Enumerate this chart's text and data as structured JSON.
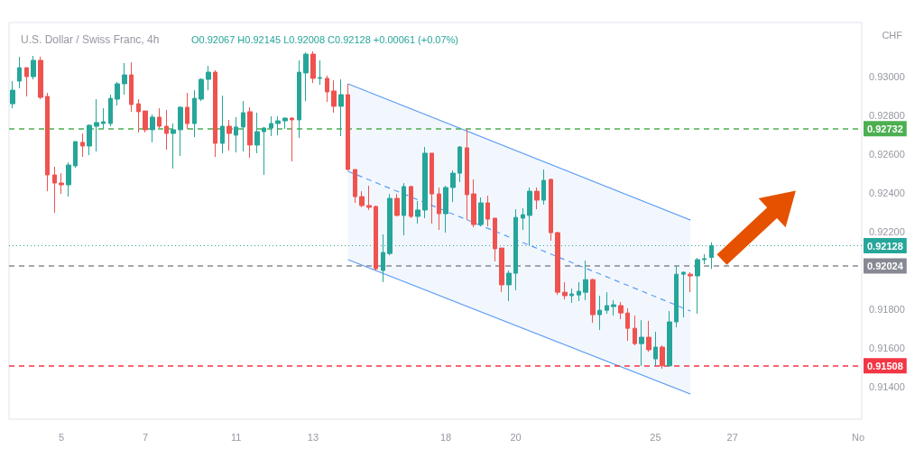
{
  "chart_data": {
    "type": "candlestick",
    "title": "U.S. Dollar / Swiss Franc, 4h",
    "subtitle": "O0.92067 H0.92145 L0.92008 C0.92128 +0.00061 (+0.07%)",
    "annotations": [
      "CHF"
    ],
    "categories": [
      null,
      null,
      null,
      null,
      null,
      null,
      null,
      "5",
      null,
      null,
      null,
      null,
      null,
      null,
      null,
      null,
      null,
      null,
      null,
      "7",
      null,
      null,
      null,
      null,
      null,
      null,
      null,
      null,
      null,
      null,
      null,
      null,
      "11",
      null,
      null,
      null,
      null,
      null,
      null,
      null,
      null,
      null,
      null,
      "13",
      null,
      null,
      null,
      null,
      null,
      null,
      null,
      null,
      null,
      null,
      null,
      null,
      null,
      null,
      null,
      null,
      null,
      null,
      "18",
      null,
      null,
      null,
      null,
      null,
      null,
      null,
      null,
      null,
      "20",
      null,
      null,
      null,
      null,
      null,
      null,
      null,
      null,
      null,
      null,
      null,
      null,
      null,
      null,
      null,
      null,
      null,
      null,
      null,
      "25",
      null,
      null,
      null,
      null,
      null,
      null,
      null,
      null,
      null,
      null,
      "27",
      null,
      null,
      null,
      null,
      null,
      null,
      null,
      null,
      null,
      null,
      null,
      null,
      null,
      null,
      null,
      null,
      null,
      "No"
    ],
    "colors": [
      "#26a69a",
      "#26a69a",
      "#ef5350",
      "#26a69a",
      "#ef5350",
      "#ef5350",
      "#ef5350",
      "#ef5350",
      "#26a69a",
      "#26a69a",
      "#ef5350",
      "#26a69a",
      "#26a69a",
      "#26a69a",
      "#26a69a",
      "#26a69a",
      "#26a69a",
      "#ef5350",
      "#ef5350",
      "#ef5350",
      "#26a69a",
      "#ef5350",
      "#ef5350",
      "#26a69a",
      "#26a69a",
      "#ef5350",
      "#26a69a",
      "#26a69a",
      "#26a69a",
      "#ef5350",
      "#26a69a",
      "#ef5350",
      "#26a69a",
      "#26a69a",
      "#ef5350",
      "#26a69a",
      "#26a69a",
      "#26a69a",
      "#26a69a",
      "#26a69a",
      "#ef5350",
      "#26a69a",
      "#26a69a",
      "#ef5350",
      "#26a69a",
      "#ef5350",
      "#ef5350",
      "#26a69a",
      "#ef5350",
      "#ef5350",
      "#ef5350",
      "#ef5350",
      "#ef5350",
      "#26a69a",
      "#26a69a",
      "#ef5350",
      "#26a69a",
      "#ef5350",
      "#26a69a",
      "#26a69a",
      "#ef5350",
      "#ef5350",
      "#26a69a",
      "#26a69a",
      "#26a69a",
      "#ef5350",
      "#ef5350",
      "#26a69a",
      "#ef5350",
      "#ef5350",
      "#ef5350",
      "#26a69a",
      "#26a69a",
      "#26a69a",
      "#26a69a",
      "#ef5350",
      "#26a69a",
      "#ef5350",
      "#ef5350",
      "#ef5350",
      "#26a69a",
      "#26a69a",
      "#26a69a",
      "#ef5350",
      "#26a69a",
      "#26a69a",
      "#26a69a",
      "#ef5350",
      "#ef5350",
      "#ef5350",
      "#26a69a",
      "#ef5350",
      "#26a69a",
      "#ef5350",
      "#26a69a",
      "#26a69a",
      "#26a69a",
      "#ef5350",
      "#26a69a",
      "#26a69a",
      "#26a69a",
      null,
      null,
      null,
      null,
      null,
      null,
      null,
      null,
      null,
      null,
      null,
      null,
      null,
      null,
      null,
      null,
      null,
      null,
      null,
      null,
      null
    ],
    "ohlc": [
      [
        0.9286,
        0.92977,
        0.92837,
        0.9293
      ],
      [
        0.92977,
        0.93102,
        0.9294,
        0.93046
      ],
      [
        0.93046,
        0.93046,
        0.92898,
        0.93
      ],
      [
        0.93,
        0.93107,
        0.92986,
        0.93084
      ],
      [
        0.93084,
        0.93102,
        0.92884,
        0.92893
      ],
      [
        0.92898,
        0.92916,
        0.92409,
        0.92493
      ],
      [
        0.92493,
        0.92535,
        0.92298,
        0.92451
      ],
      [
        0.92451,
        0.92502,
        0.92395,
        0.92442
      ],
      [
        0.92442,
        0.92558,
        0.92381,
        0.92544
      ],
      [
        0.9254,
        0.92665,
        0.9253,
        0.92665
      ],
      [
        0.92661,
        0.92707,
        0.92586,
        0.92642
      ],
      [
        0.92642,
        0.92754,
        0.92595,
        0.92749
      ],
      [
        0.92744,
        0.92884,
        0.92614,
        0.92763
      ],
      [
        0.92758,
        0.92837,
        0.9273,
        0.92767
      ],
      [
        0.92758,
        0.92907,
        0.92744,
        0.92888
      ],
      [
        0.92884,
        0.92972,
        0.92851,
        0.92963
      ],
      [
        0.92963,
        0.9307,
        0.92907,
        0.93009
      ],
      [
        0.93009,
        0.93074,
        0.92819,
        0.92856
      ],
      [
        0.9286,
        0.92884,
        0.92712,
        0.92819
      ],
      [
        0.92823,
        0.92823,
        0.92712,
        0.92726
      ],
      [
        0.92726,
        0.92805,
        0.92661,
        0.92791
      ],
      [
        0.92791,
        0.92837,
        0.92735,
        0.92744
      ],
      [
        0.92744,
        0.92828,
        0.92623,
        0.92707
      ],
      [
        0.92707,
        0.92758,
        0.92526,
        0.92726
      ],
      [
        0.92726,
        0.92847,
        0.92591,
        0.92842
      ],
      [
        0.92842,
        0.92916,
        0.9273,
        0.92758
      ],
      [
        0.92758,
        0.9293,
        0.92688,
        0.92888
      ],
      [
        0.92884,
        0.92991,
        0.92874,
        0.92986
      ],
      [
        0.92986,
        0.93056,
        0.9293,
        0.93023
      ],
      [
        0.93023,
        0.93033,
        0.92586,
        0.92656
      ],
      [
        0.92656,
        0.92902,
        0.92605,
        0.92744
      ],
      [
        0.92744,
        0.92777,
        0.92619,
        0.92707
      ],
      [
        0.92698,
        0.92791,
        0.92609,
        0.9274
      ],
      [
        0.9274,
        0.92874,
        0.92614,
        0.92814
      ],
      [
        0.92819,
        0.92842,
        0.92581,
        0.92647
      ],
      [
        0.92647,
        0.92814,
        0.92605,
        0.92716
      ],
      [
        0.92716,
        0.9274,
        0.92493,
        0.92735
      ],
      [
        0.92735,
        0.92795,
        0.92693,
        0.92758
      ],
      [
        0.92758,
        0.92795,
        0.92698,
        0.92772
      ],
      [
        0.92772,
        0.92791,
        0.9273,
        0.92786
      ],
      [
        0.92786,
        0.92791,
        0.92563,
        0.92777
      ],
      [
        0.92777,
        0.93084,
        0.92684,
        0.93023
      ],
      [
        0.93019,
        0.93125,
        0.92874,
        0.93116
      ],
      [
        0.93116,
        0.9313,
        0.92967,
        0.92991
      ],
      [
        0.92991,
        0.93084,
        0.92958,
        0.92995
      ],
      [
        0.92991,
        0.93005,
        0.9287,
        0.92921
      ],
      [
        0.92926,
        0.92981,
        0.92814,
        0.92847
      ],
      [
        0.92847,
        0.92986,
        0.92693,
        0.92907
      ],
      [
        0.92907,
        0.92963,
        0.92516,
        0.92521
      ],
      [
        0.92521,
        0.92521,
        0.92349,
        0.92381
      ],
      [
        0.92381,
        0.92409,
        0.92326,
        0.92335
      ],
      [
        0.92335,
        0.92437,
        0.92312,
        0.92326
      ],
      [
        0.9233,
        0.92335,
        0.92,
        0.92009
      ],
      [
        0.92,
        0.92186,
        0.9194,
        0.92093
      ],
      [
        0.92088,
        0.92395,
        0.92079,
        0.92372
      ],
      [
        0.92372,
        0.92395,
        0.92279,
        0.92284
      ],
      [
        0.92284,
        0.92451,
        0.92181,
        0.92433
      ],
      [
        0.92433,
        0.92437,
        0.9227,
        0.92279
      ],
      [
        0.92279,
        0.92358,
        0.92242,
        0.92312
      ],
      [
        0.92312,
        0.92637,
        0.9227,
        0.92605
      ],
      [
        0.92605,
        0.92605,
        0.92242,
        0.92395
      ],
      [
        0.92395,
        0.92428,
        0.92209,
        0.92293
      ],
      [
        0.92293,
        0.92437,
        0.92195,
        0.92428
      ],
      [
        0.92428,
        0.92516,
        0.92353,
        0.92502
      ],
      [
        0.92502,
        0.92642,
        0.92456,
        0.92637
      ],
      [
        0.92633,
        0.9273,
        0.9226,
        0.92391
      ],
      [
        0.92395,
        0.9247,
        0.92223,
        0.92237
      ],
      [
        0.92237,
        0.92377,
        0.92228,
        0.92349
      ],
      [
        0.92349,
        0.92386,
        0.92228,
        0.92265
      ],
      [
        0.9227,
        0.9227,
        0.92047,
        0.92112
      ],
      [
        0.92116,
        0.92116,
        0.91888,
        0.91926
      ],
      [
        0.91926,
        0.92,
        0.91842,
        0.91986
      ],
      [
        0.91986,
        0.92316,
        0.91898,
        0.92274
      ],
      [
        0.9227,
        0.92321,
        0.92209,
        0.92288
      ],
      [
        0.92284,
        0.92428,
        0.9213,
        0.92409
      ],
      [
        0.92409,
        0.92428,
        0.92316,
        0.92363
      ],
      [
        0.92363,
        0.92521,
        0.9234,
        0.92465
      ],
      [
        0.9247,
        0.92474,
        0.92154,
        0.92195
      ],
      [
        0.92195,
        0.922,
        0.91874,
        0.91888
      ],
      [
        0.91888,
        0.9194,
        0.91851,
        0.9187
      ],
      [
        0.9187,
        0.91907,
        0.91833,
        0.91879
      ],
      [
        0.91874,
        0.9194,
        0.91842,
        0.91893
      ],
      [
        0.91888,
        0.92051,
        0.91847,
        0.91953
      ],
      [
        0.91953,
        0.91958,
        0.9173,
        0.91772
      ],
      [
        0.91772,
        0.9187,
        0.91693,
        0.91795
      ],
      [
        0.91795,
        0.91888,
        0.91777,
        0.91819
      ],
      [
        0.91814,
        0.91847,
        0.91767,
        0.91823
      ],
      [
        0.91819,
        0.91837,
        0.91749,
        0.91781
      ],
      [
        0.91781,
        0.91805,
        0.91637,
        0.91702
      ],
      [
        0.91702,
        0.91767,
        0.91614,
        0.91623
      ],
      [
        0.91623,
        0.91744,
        0.91508,
        0.91656
      ],
      [
        0.91656,
        0.9174,
        0.91581,
        0.91591
      ],
      [
        0.91544,
        0.91684,
        0.91508,
        0.91605
      ],
      [
        0.91605,
        0.91614,
        0.91493,
        0.91508
      ],
      [
        0.91508,
        0.91791,
        0.91508,
        0.91735
      ],
      [
        0.91735,
        0.92024,
        0.91707,
        0.91981
      ],
      [
        0.91981,
        0.91995,
        0.91758,
        0.91991
      ],
      [
        0.91981,
        0.91991,
        0.91888,
        0.91972
      ],
      [
        0.91972,
        0.92065,
        0.91777,
        0.92056
      ],
      [
        0.92056,
        0.92084,
        0.92033,
        0.92061
      ],
      [
        0.92067,
        0.92145,
        0.92008,
        0.92128
      ],
      null,
      null,
      null,
      null,
      null,
      null,
      null,
      null,
      null,
      null,
      null,
      null,
      null,
      null,
      null,
      null,
      null,
      null,
      null,
      null,
      null
    ],
    "series": [
      {
        "type": "line",
        "color": "#5b9cf6",
        "line_style": "solid",
        "values": [
          null,
          null,
          null,
          null,
          null,
          null,
          null,
          null,
          null,
          null,
          null,
          null,
          null,
          null,
          null,
          null,
          null,
          null,
          null,
          null,
          null,
          null,
          null,
          null,
          null,
          null,
          null,
          null,
          null,
          null,
          null,
          null,
          null,
          null,
          null,
          null,
          null,
          null,
          null,
          null,
          null,
          null,
          null,
          null,
          null,
          null,
          null,
          null,
          0.92963,
          null,
          null,
          null,
          null,
          null,
          null,
          null,
          null,
          null,
          null,
          null,
          null,
          null,
          null,
          null,
          null,
          null,
          null,
          null,
          null,
          null,
          null,
          null,
          null,
          null,
          null,
          null,
          null,
          null,
          null,
          null,
          null,
          null,
          null,
          null,
          null,
          null,
          null,
          null,
          null,
          null,
          null,
          null,
          null,
          null,
          null,
          null,
          null,
          0.9226,
          null,
          null,
          null,
          null,
          null,
          null,
          null,
          null,
          null,
          null,
          null,
          null,
          null,
          null,
          null,
          null,
          null,
          null,
          null,
          null,
          null,
          null,
          null,
          null
        ]
      },
      {
        "type": "line",
        "color": "#5b9cf6",
        "line_style": "solid",
        "values": [
          null,
          null,
          null,
          null,
          null,
          null,
          null,
          null,
          null,
          null,
          null,
          null,
          null,
          null,
          null,
          null,
          null,
          null,
          null,
          null,
          null,
          null,
          null,
          null,
          null,
          null,
          null,
          null,
          null,
          null,
          null,
          null,
          null,
          null,
          null,
          null,
          null,
          null,
          null,
          null,
          null,
          null,
          null,
          null,
          null,
          null,
          null,
          null,
          0.92056,
          null,
          null,
          null,
          null,
          null,
          null,
          null,
          null,
          null,
          null,
          null,
          null,
          null,
          null,
          null,
          null,
          null,
          null,
          null,
          null,
          null,
          null,
          null,
          null,
          null,
          null,
          null,
          null,
          null,
          null,
          null,
          null,
          null,
          null,
          null,
          null,
          null,
          null,
          null,
          null,
          null,
          null,
          null,
          null,
          null,
          null,
          null,
          null,
          0.91363,
          null,
          null,
          null,
          null,
          null,
          null,
          null,
          null,
          null,
          null,
          null,
          null,
          null,
          null,
          null,
          null,
          null,
          null,
          null,
          null,
          null,
          null,
          null,
          null
        ]
      },
      {
        "type": "line",
        "color": "#5b9cf6",
        "line_style": "dashed",
        "values": [
          null,
          null,
          null,
          null,
          null,
          null,
          null,
          null,
          null,
          null,
          null,
          null,
          null,
          null,
          null,
          null,
          null,
          null,
          null,
          null,
          null,
          null,
          null,
          null,
          null,
          null,
          null,
          null,
          null,
          null,
          null,
          null,
          null,
          null,
          null,
          null,
          null,
          null,
          null,
          null,
          null,
          null,
          null,
          null,
          null,
          null,
          null,
          null,
          0.92512,
          null,
          null,
          null,
          null,
          null,
          null,
          null,
          null,
          null,
          null,
          null,
          null,
          null,
          null,
          null,
          null,
          null,
          null,
          null,
          null,
          null,
          null,
          null,
          null,
          null,
          null,
          null,
          null,
          null,
          null,
          null,
          null,
          null,
          null,
          null,
          null,
          null,
          null,
          null,
          null,
          null,
          null,
          null,
          null,
          null,
          null,
          null,
          null,
          0.91791,
          null,
          null,
          null,
          null,
          null,
          null,
          null,
          null,
          null,
          null,
          null,
          null,
          null,
          null,
          null,
          null,
          null,
          null,
          null,
          null,
          null,
          null,
          null,
          null
        ],
        "lower": [
          null,
          null,
          null,
          null,
          null,
          null,
          null,
          null,
          null,
          null,
          null,
          null,
          null,
          null,
          null,
          null,
          null,
          null,
          null,
          null,
          null,
          null,
          null,
          null,
          null,
          null,
          null,
          null,
          null,
          null,
          null,
          null,
          null,
          null,
          null,
          null,
          null,
          null,
          null,
          null,
          null,
          null,
          null,
          null,
          null,
          null,
          null,
          null,
          0.92056,
          null,
          null,
          null,
          null,
          null,
          null,
          null,
          null,
          null,
          null,
          null,
          null,
          null,
          null,
          null,
          null,
          null,
          null,
          null,
          null,
          null,
          null,
          null,
          null,
          null,
          null,
          null,
          null,
          null,
          null,
          null,
          null,
          null,
          null,
          null,
          null,
          null,
          null,
          null,
          null,
          null,
          null,
          null,
          null,
          null,
          null,
          null,
          null,
          0.91363,
          null,
          null,
          null,
          null,
          null,
          null,
          null,
          null,
          null,
          null,
          null,
          null,
          null,
          null,
          null,
          null,
          null,
          null,
          null,
          null,
          null,
          null,
          null,
          null
        ],
        "upper": [
          null,
          null,
          null,
          null,
          null,
          null,
          null,
          null,
          null,
          null,
          null,
          null,
          null,
          null,
          null,
          null,
          null,
          null,
          null,
          null,
          null,
          null,
          null,
          null,
          null,
          null,
          null,
          null,
          null,
          null,
          null,
          null,
          null,
          null,
          null,
          null,
          null,
          null,
          null,
          null,
          null,
          null,
          null,
          null,
          null,
          null,
          null,
          null,
          0.92963,
          null,
          null,
          null,
          null,
          null,
          null,
          null,
          null,
          null,
          null,
          null,
          null,
          null,
          null,
          null,
          null,
          null,
          null,
          null,
          null,
          null,
          null,
          null,
          null,
          null,
          null,
          null,
          null,
          null,
          null,
          null,
          null,
          null,
          null,
          null,
          null,
          null,
          null,
          null,
          null,
          null,
          null,
          null,
          null,
          null,
          null,
          null,
          null,
          0.9226,
          null,
          null,
          null,
          null,
          null,
          null,
          null,
          null,
          null,
          null,
          null,
          null,
          null,
          null,
          null,
          null,
          null,
          null,
          null,
          null,
          null,
          null,
          null,
          null
        ]
      }
    ],
    "ylim": [
      0.91233,
      0.93279
    ],
    "yticks": [
      {
        "value": 0.914,
        "label": "0.91400"
      },
      {
        "value": 0.916,
        "label": "0.91600"
      },
      {
        "value": 0.918,
        "label": "0.91800"
      },
      {
        "value": 0.922,
        "label": "0.92200"
      },
      {
        "value": 0.924,
        "label": "0.92400"
      },
      {
        "value": 0.926,
        "label": "0.92600"
      },
      {
        "value": 0.928,
        "label": "0.92800"
      },
      {
        "value": 0.93,
        "label": "0.93000"
      }
    ],
    "ref_lines": [
      {
        "axis": "y",
        "value": 0.92732,
        "label": "0.92732",
        "color": "#4caf50",
        "line_style": "dashed"
      },
      {
        "axis": "y",
        "value": 0.91508,
        "label": "0.91508",
        "color": "#f23645",
        "line_style": "dashed"
      },
      {
        "axis": "y",
        "value": 0.92024,
        "label": "0.92024",
        "color": "#868993",
        "line_style": "dashed"
      },
      {
        "axis": "y",
        "value": 0.92128,
        "label": "0.92128",
        "color": "#26a69a",
        "line_style": "dotted"
      }
    ],
    "grid": false
  }
}
